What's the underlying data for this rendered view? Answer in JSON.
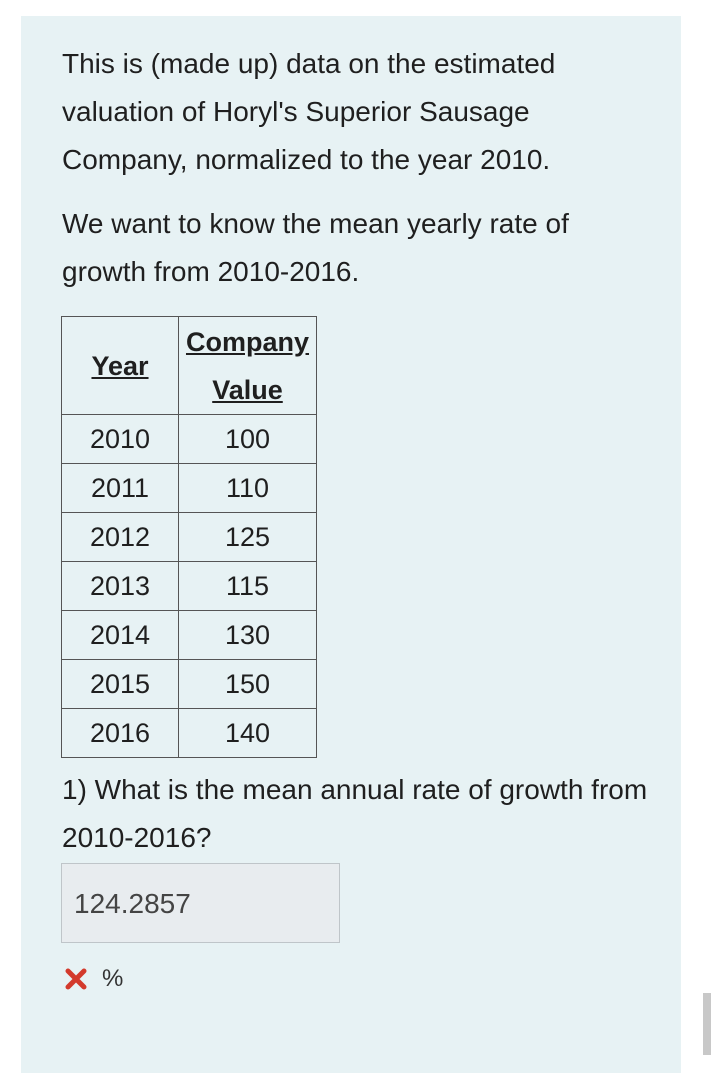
{
  "intro": {
    "paragraph1": "This is (made up) data on the estimated valuation of Horyl's Superior Sausage Company, normalized to the year 2010.",
    "paragraph2": "We want to know the mean yearly rate of growth from 2010-2016."
  },
  "table": {
    "header_year": "Year",
    "header_value": "Company Value",
    "rows": [
      {
        "year": "2010",
        "value": "100"
      },
      {
        "year": "2011",
        "value": "110"
      },
      {
        "year": "2012",
        "value": "125"
      },
      {
        "year": "2013",
        "value": "115"
      },
      {
        "year": "2014",
        "value": "130"
      },
      {
        "year": "2015",
        "value": "150"
      },
      {
        "year": "2016",
        "value": "140"
      }
    ]
  },
  "question": {
    "text": "1) What is the mean annual rate of growth from 2010-2016?",
    "answer_value": "124.2857",
    "unit": "%",
    "status_icon": "x-mark-icon",
    "status_color": "#d33a2c"
  },
  "colors": {
    "card_background": "#e7f2f4",
    "answer_background": "#e8ecef"
  }
}
